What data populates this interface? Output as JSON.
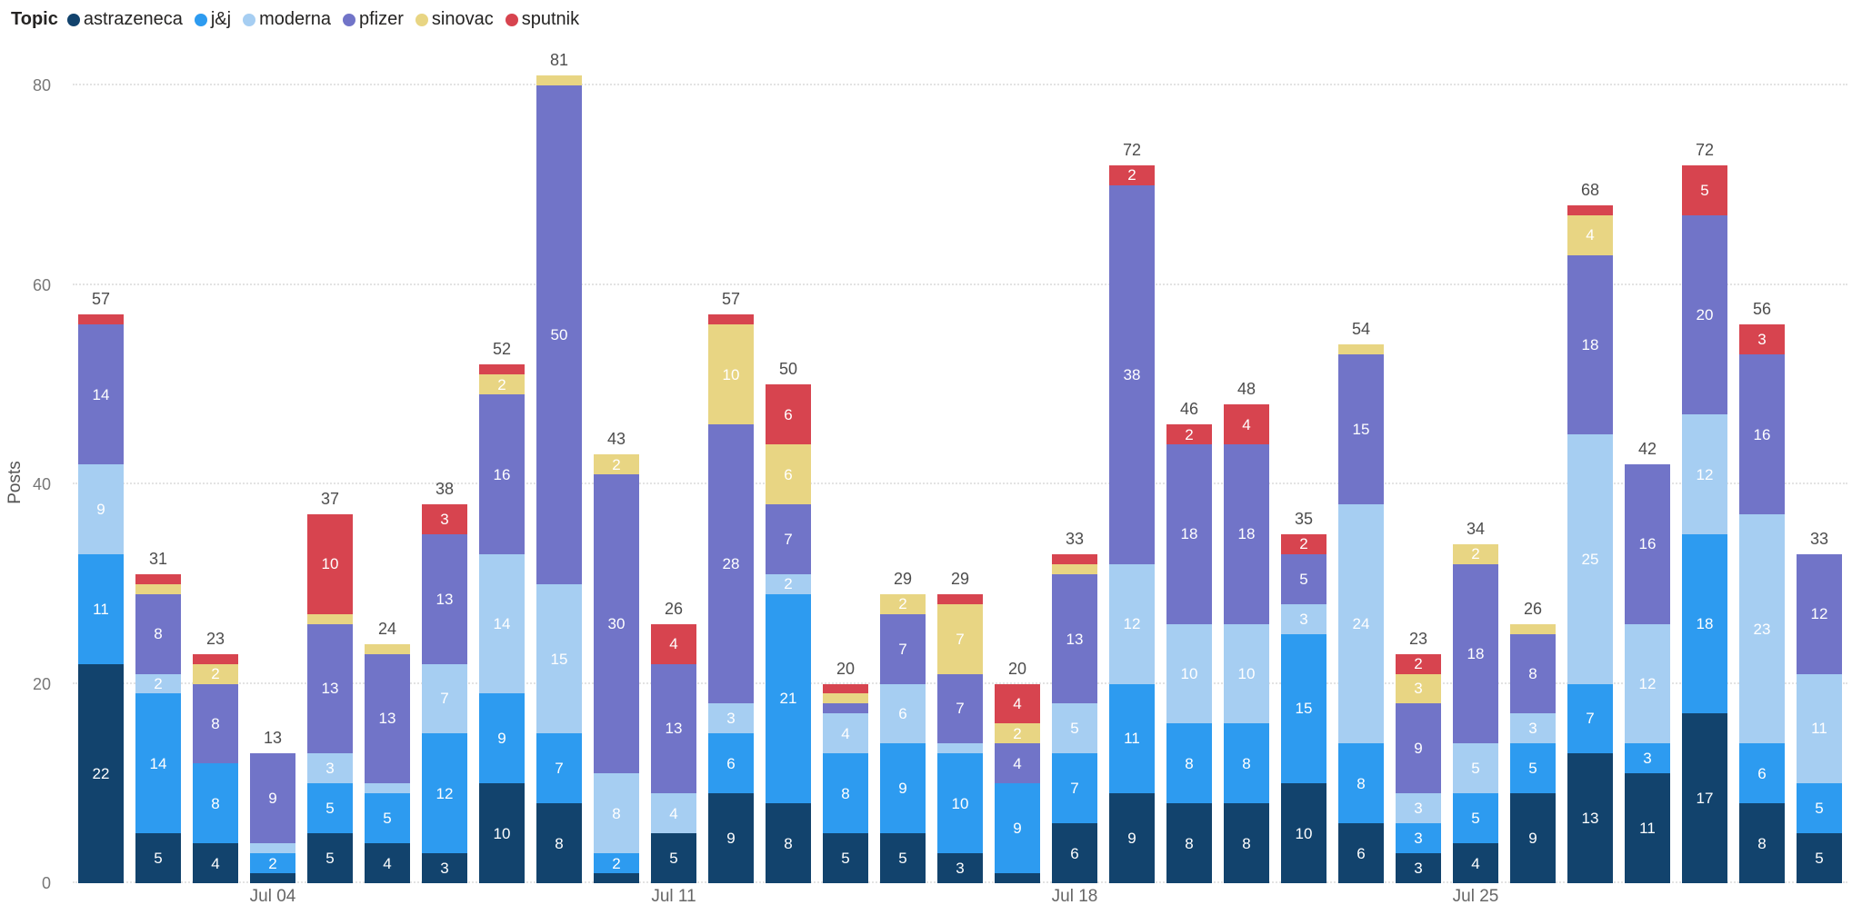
{
  "chart_data": {
    "type": "bar",
    "stacked": true,
    "legend_title": "Topic",
    "legend_position": "top-left",
    "ylabel": "Posts",
    "ylim": [
      0,
      80
    ],
    "yticks": [
      0,
      20,
      40,
      60,
      80
    ],
    "grid": "dotted-horizontal",
    "label_min_value": 2,
    "series": [
      {
        "name": "astrazeneca",
        "color": "#12436D"
      },
      {
        "name": "j&j",
        "color": "#2D9BF0"
      },
      {
        "name": "moderna",
        "color": "#A6CEF2"
      },
      {
        "name": "pfizer",
        "color": "#7174C8"
      },
      {
        "name": "sinovac",
        "color": "#E8D583"
      },
      {
        "name": "sputnik",
        "color": "#D7444F"
      }
    ],
    "x_ticks": [
      {
        "bar_index": 3,
        "label": "Jul 04"
      },
      {
        "bar_index": 10,
        "label": "Jul 11"
      },
      {
        "bar_index": 17,
        "label": "Jul 18"
      },
      {
        "bar_index": 24,
        "label": "Jul 25"
      }
    ],
    "bars": [
      {
        "total": 57,
        "values": [
          22,
          11,
          9,
          14,
          0,
          1
        ]
      },
      {
        "total": 31,
        "values": [
          5,
          14,
          2,
          8,
          1,
          1
        ]
      },
      {
        "total": 23,
        "values": [
          4,
          8,
          0,
          8,
          2,
          1
        ]
      },
      {
        "total": 13,
        "values": [
          1,
          2,
          1,
          9,
          0,
          0
        ]
      },
      {
        "total": 37,
        "values": [
          5,
          5,
          3,
          13,
          1,
          10
        ]
      },
      {
        "total": 24,
        "values": [
          4,
          5,
          1,
          13,
          1,
          0
        ]
      },
      {
        "total": 38,
        "values": [
          3,
          12,
          7,
          13,
          0,
          3
        ]
      },
      {
        "total": 52,
        "values": [
          10,
          9,
          14,
          16,
          2,
          1
        ]
      },
      {
        "total": 81,
        "values": [
          8,
          7,
          15,
          50,
          1,
          0
        ]
      },
      {
        "total": 43,
        "values": [
          1,
          2,
          8,
          30,
          2,
          0
        ]
      },
      {
        "total": 26,
        "values": [
          5,
          0,
          4,
          13,
          0,
          4
        ]
      },
      {
        "total": 57,
        "values": [
          9,
          6,
          3,
          28,
          10,
          1
        ]
      },
      {
        "total": 50,
        "values": [
          8,
          21,
          2,
          7,
          6,
          6
        ]
      },
      {
        "total": 20,
        "values": [
          5,
          8,
          4,
          1,
          1,
          1
        ]
      },
      {
        "total": 29,
        "values": [
          5,
          9,
          6,
          7,
          2,
          0
        ]
      },
      {
        "total": 29,
        "values": [
          3,
          10,
          1,
          7,
          7,
          1
        ]
      },
      {
        "total": 20,
        "values": [
          1,
          9,
          0,
          4,
          2,
          4
        ]
      },
      {
        "total": 33,
        "values": [
          6,
          7,
          5,
          13,
          1,
          1
        ]
      },
      {
        "total": 72,
        "values": [
          9,
          11,
          12,
          38,
          0,
          2
        ]
      },
      {
        "total": 46,
        "values": [
          8,
          8,
          10,
          18,
          0,
          2
        ]
      },
      {
        "total": 48,
        "values": [
          8,
          8,
          10,
          18,
          0,
          4
        ]
      },
      {
        "total": 35,
        "values": [
          10,
          15,
          3,
          5,
          0,
          2
        ]
      },
      {
        "total": 54,
        "values": [
          6,
          8,
          24,
          15,
          1,
          0
        ]
      },
      {
        "total": 23,
        "values": [
          3,
          3,
          3,
          9,
          3,
          2
        ]
      },
      {
        "total": 34,
        "values": [
          4,
          5,
          5,
          18,
          2,
          0
        ]
      },
      {
        "total": 26,
        "values": [
          9,
          5,
          3,
          8,
          1,
          0
        ]
      },
      {
        "total": 68,
        "values": [
          13,
          7,
          25,
          18,
          4,
          1
        ]
      },
      {
        "total": 42,
        "values": [
          11,
          3,
          12,
          16,
          0,
          0
        ]
      },
      {
        "total": 72,
        "values": [
          17,
          18,
          12,
          20,
          0,
          5
        ]
      },
      {
        "total": 56,
        "values": [
          8,
          6,
          23,
          16,
          0,
          3
        ]
      },
      {
        "total": 33,
        "values": [
          5,
          5,
          11,
          12,
          0,
          0
        ]
      }
    ]
  }
}
